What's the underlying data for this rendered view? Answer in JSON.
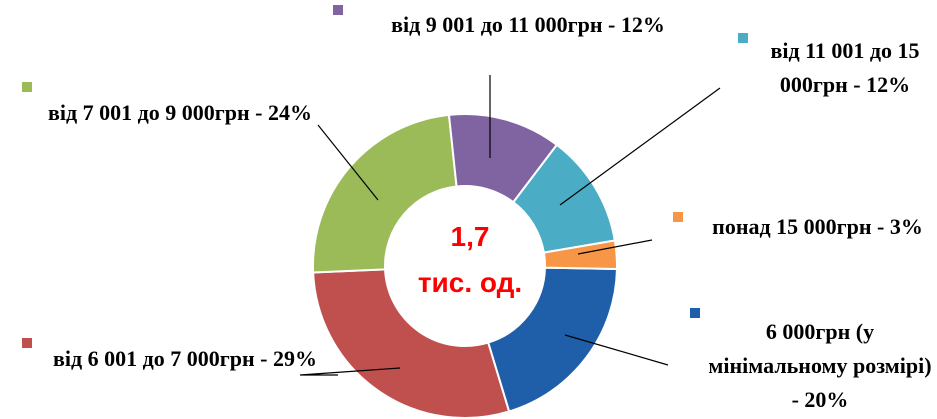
{
  "chart_data": {
    "type": "donut",
    "categories": [
      "6 000грн (у мінімальному розмірі) - 20%",
      "від 6 001 до 7 000грн - 29%",
      "від 7 001 до 9 000грн - 24%",
      "від 9 001 до 11 000грн - 12%",
      "від 11 001 до 15 000грн - 12%",
      "понад 15 000грн - 3%"
    ],
    "values": [
      20,
      29,
      24,
      12,
      12,
      3
    ],
    "colors": [
      "#1f5ea8",
      "#c0504d",
      "#9bbb59",
      "#8064a2",
      "#4bacc6",
      "#f79646"
    ],
    "center_text": [
      "1,7",
      "тис. од."
    ]
  }
}
